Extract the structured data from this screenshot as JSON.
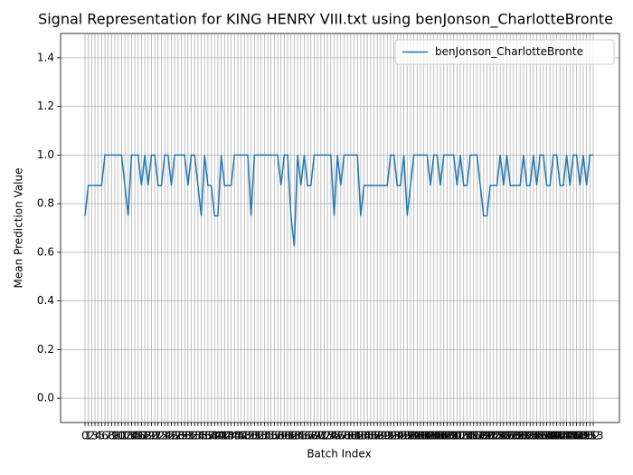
{
  "chart_data": {
    "type": "line",
    "title": "Signal Representation for KING HENRY VIII.txt using benJonson_CharlotteBronte",
    "x_label": "Batch Index",
    "y_label": "Mean Prediction Value",
    "categories": [
      "0",
      "1",
      "2",
      "3",
      "4",
      "5",
      "6",
      "7",
      "8",
      "9",
      "10",
      "11",
      "12",
      "13",
      "14",
      "15",
      "16",
      "17",
      "18",
      "19",
      "20",
      "21",
      "22",
      "23",
      "24",
      "25",
      "26",
      "27",
      "28",
      "29",
      "30",
      "31",
      "32",
      "33",
      "34",
      "35",
      "36",
      "37",
      "38",
      "39",
      "40",
      "41",
      "42",
      "43",
      "44",
      "45",
      "46",
      "47",
      "48",
      "49",
      "50",
      "51",
      "52",
      "53",
      "54",
      "55",
      "56",
      "57",
      "58",
      "59",
      "60",
      "61",
      "62",
      "63",
      "64",
      "65",
      "66",
      "67",
      "68",
      "69",
      "70",
      "71",
      "72",
      "73",
      "74",
      "75",
      "76",
      "77",
      "78",
      "79",
      "80",
      "81",
      "82",
      "83",
      "84",
      "85",
      "86",
      "87",
      "88",
      "89",
      "90",
      "91",
      "92",
      "93",
      "94",
      "95",
      "96",
      "97",
      "98",
      "99",
      "100",
      "101",
      "102",
      "103",
      "104",
      "105",
      "106",
      "107",
      "108",
      "109",
      "110",
      "111",
      "112",
      "113",
      "114",
      "115",
      "116",
      "117",
      "118",
      "119",
      "120",
      "121",
      "122",
      "123",
      "124",
      "125",
      "126",
      "127",
      "128",
      "129",
      "130",
      "131",
      "132",
      "133",
      "134",
      "135",
      "136",
      "137",
      "138",
      "139",
      "140",
      "141",
      "142",
      "143",
      "144",
      "145",
      "146",
      "147",
      "148",
      "149",
      "150",
      "151",
      "152",
      "153"
    ],
    "series": [
      {
        "name": "benJonson_CharlotteBronte",
        "color": "#1f77b4",
        "values": [
          0.75,
          0.875,
          0.875,
          0.875,
          0.875,
          0.875,
          1,
          1,
          1,
          1,
          1,
          1,
          0.875,
          0.75,
          1,
          1,
          1,
          0.875,
          1,
          0.875,
          1,
          1,
          0.875,
          0.875,
          1,
          1,
          0.875,
          1,
          1,
          1,
          1,
          0.875,
          1,
          1,
          0.875,
          0.75,
          1,
          0.875,
          0.875,
          0.75,
          0.75,
          1,
          0.875,
          0.875,
          0.875,
          1,
          1,
          1,
          1,
          1,
          0.75,
          1,
          1,
          1,
          1,
          1,
          1,
          1,
          1,
          0.875,
          1,
          1,
          0.75,
          0.625,
          1,
          0.875,
          1,
          0.875,
          0.875,
          1,
          1,
          1,
          1,
          1,
          1,
          0.75,
          1,
          0.875,
          1,
          1,
          1,
          1,
          1,
          0.75,
          0.875,
          0.875,
          0.875,
          0.875,
          0.875,
          0.875,
          0.875,
          0.875,
          1,
          1,
          0.875,
          0.875,
          1,
          0.75,
          0.875,
          1,
          1,
          1,
          1,
          1,
          0.875,
          1,
          1,
          0.875,
          1,
          1,
          1,
          1,
          0.875,
          1,
          0.875,
          0.875,
          1,
          1,
          1,
          0.875,
          0.75,
          0.75,
          0.875,
          0.875,
          0.875,
          1,
          0.875,
          1,
          0.875,
          0.875,
          0.875,
          0.875,
          1,
          0.875,
          0.875,
          1,
          0.875,
          1,
          1,
          0.875,
          0.875,
          1,
          1,
          0.875,
          0.875,
          1,
          0.875,
          1,
          1,
          0.875,
          1,
          0.875,
          1,
          1
        ]
      }
    ],
    "ylim": [
      -0.1,
      1.5
    ],
    "yticks": [
      {
        "value": 0,
        "label": "0.0"
      },
      {
        "value": 0.2,
        "label": "0.2"
      },
      {
        "value": 0.4,
        "label": "0.4"
      },
      {
        "value": 0.6,
        "label": "0.6"
      },
      {
        "value": 0.8,
        "label": "0.8"
      },
      {
        "value": 1,
        "label": "1.0"
      },
      {
        "value": 1.2,
        "label": "1.2"
      },
      {
        "value": 1.4,
        "label": "1.4"
      }
    ],
    "grid": true,
    "legend": "upper right"
  }
}
